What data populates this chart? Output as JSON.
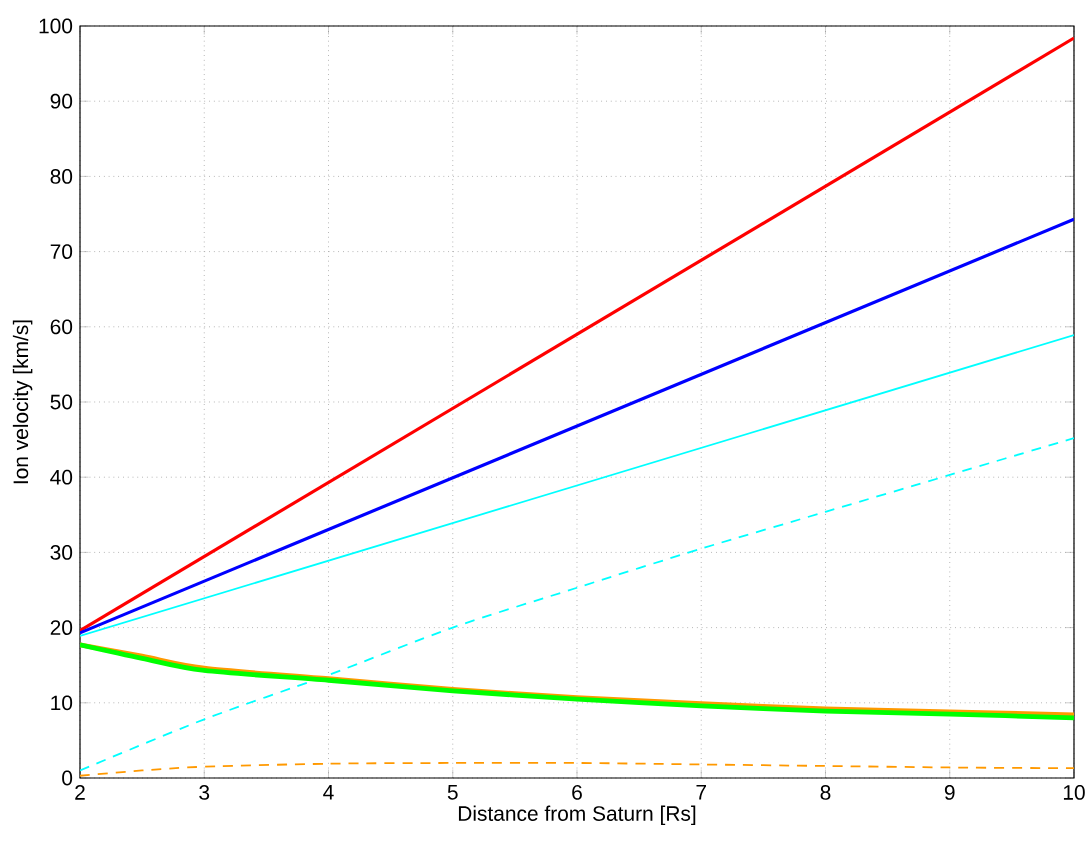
{
  "chart_data": {
    "type": "line",
    "xlabel": "Distance from Saturn [Rs]",
    "ylabel": "Ion velocity [km/s]",
    "xlim": [
      2,
      10
    ],
    "ylim": [
      0,
      100
    ],
    "xticks": [
      2,
      3,
      4,
      5,
      6,
      7,
      8,
      9,
      10
    ],
    "yticks": [
      0,
      10,
      20,
      30,
      40,
      50,
      60,
      70,
      80,
      90,
      100
    ],
    "grid": true,
    "series": [
      {
        "color": "#ff0000",
        "x": [
          2,
          10
        ],
        "values": [
          19.6,
          98.4
        ],
        "line_style": "solid"
      },
      {
        "color": "#0000ff",
        "x": [
          2,
          10
        ],
        "values": [
          19.3,
          74.3
        ],
        "line_style": "solid"
      },
      {
        "color": "#00ffff",
        "x": [
          2,
          10
        ],
        "values": [
          18.9,
          58.9
        ],
        "line_style": "solid"
      },
      {
        "color": "#00ffff",
        "x": [
          2,
          3,
          4,
          5,
          6,
          7,
          8,
          9,
          10
        ],
        "values": [
          1,
          7.8,
          13.7,
          20,
          25.3,
          30.5,
          35.4,
          40.3,
          45.2
        ],
        "line_style": "dashed"
      },
      {
        "color": "#ff9900",
        "x": [
          2,
          2.5,
          3,
          4,
          5,
          6,
          7,
          8,
          9,
          10
        ],
        "values": [
          17.7,
          16.2,
          14.6,
          13.2,
          11.8,
          10.7,
          9.9,
          9.2,
          8.8,
          8.4
        ],
        "line_style": "solid"
      },
      {
        "color": "#00ff00",
        "x": [
          2,
          2.5,
          3,
          4,
          5,
          6,
          7,
          8,
          9,
          10
        ],
        "values": [
          17.7,
          15.9,
          14.3,
          13.0,
          11.6,
          10.5,
          9.6,
          8.9,
          8.5,
          8.0
        ],
        "line_style": "solid"
      },
      {
        "color": "#ff9900",
        "x": [
          2,
          2.5,
          3,
          4,
          5,
          6,
          7,
          8,
          9,
          10
        ],
        "values": [
          0.3,
          1.0,
          1.5,
          1.9,
          2.0,
          2.0,
          1.8,
          1.6,
          1.4,
          1.3
        ],
        "line_style": "dashed"
      }
    ]
  }
}
